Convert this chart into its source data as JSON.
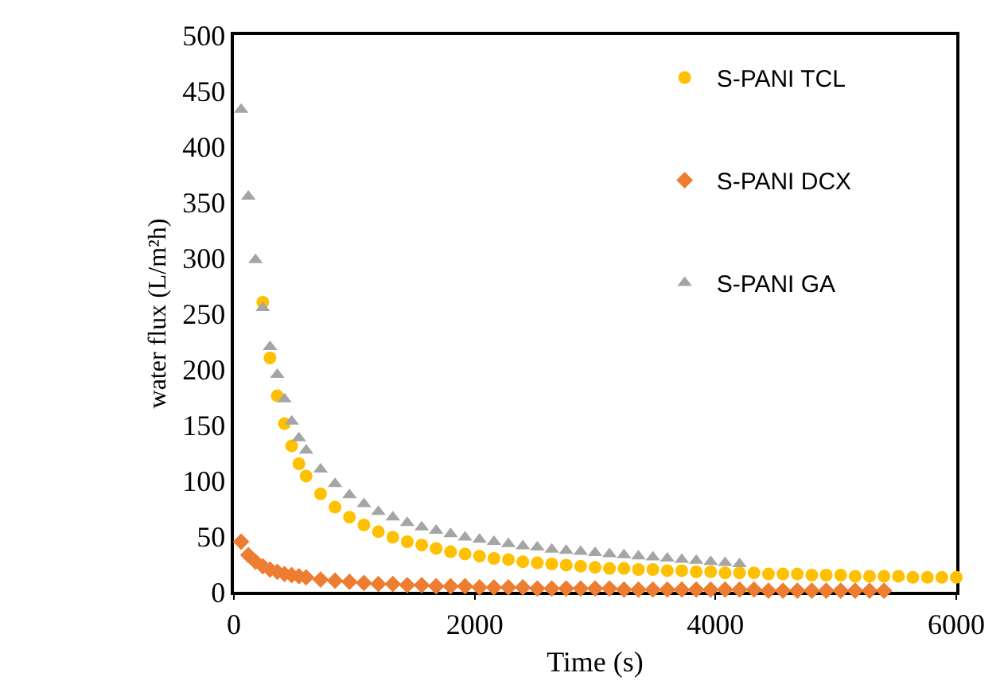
{
  "chart_data": {
    "type": "scatter",
    "xlabel": "Time (s)",
    "ylabel": "water flux (L/m²h)",
    "xlim": [
      0,
      6000
    ],
    "xticks": [
      0,
      2000,
      4000,
      6000
    ],
    "ylim": [
      0,
      500
    ],
    "yticks": [
      0,
      50,
      100,
      150,
      200,
      250,
      300,
      350,
      400,
      450,
      500
    ],
    "legend": "top right",
    "series": [
      {
        "name": "S-PANI TCL",
        "color": "#ffc000",
        "marker": "circle",
        "x": [
          240,
          300,
          360,
          420,
          480,
          540,
          600,
          720,
          840,
          960,
          1080,
          1200,
          1320,
          1440,
          1560,
          1680,
          1800,
          1920,
          2040,
          2160,
          2280,
          2400,
          2520,
          2640,
          2760,
          2880,
          3000,
          3120,
          3240,
          3360,
          3480,
          3600,
          3720,
          3840,
          3960,
          4080,
          4200,
          4320,
          4440,
          4560,
          4680,
          4800,
          4920,
          5040,
          5160,
          5280,
          5400,
          5520,
          5640,
          5760,
          5880,
          6000
        ],
        "values": [
          260,
          210,
          176,
          151,
          131,
          115,
          104,
          88,
          76,
          67,
          60,
          54,
          49,
          45,
          42,
          39,
          36,
          34,
          32,
          30,
          29,
          27,
          26,
          25,
          24,
          23,
          22,
          21,
          21,
          20,
          20,
          19,
          19,
          18,
          18,
          17,
          17,
          17,
          16,
          16,
          16,
          15,
          15,
          15,
          14,
          14,
          14,
          14,
          13,
          13,
          13,
          13
        ]
      },
      {
        "name": "S-PANI DCX",
        "color": "#ed7d31",
        "marker": "diamond",
        "x": [
          60,
          120,
          180,
          240,
          300,
          360,
          420,
          480,
          540,
          600,
          720,
          840,
          960,
          1080,
          1200,
          1320,
          1440,
          1560,
          1680,
          1800,
          1920,
          2040,
          2160,
          2280,
          2400,
          2520,
          2640,
          2760,
          2880,
          3000,
          3120,
          3240,
          3360,
          3480,
          3600,
          3720,
          3840,
          3960,
          4080,
          4200,
          4320,
          4440,
          4560,
          4680,
          4800,
          4920,
          5040,
          5160,
          5280,
          5400
        ],
        "values": [
          45,
          33,
          27,
          23,
          20,
          18,
          16,
          15,
          14,
          13,
          11,
          10,
          9,
          8,
          7,
          7,
          6,
          6,
          5,
          5,
          5,
          4,
          4,
          4,
          4,
          3,
          3,
          3,
          3,
          3,
          3,
          2,
          2,
          2,
          2,
          2,
          2,
          2,
          2,
          2,
          2,
          1,
          1,
          1,
          1,
          1,
          1,
          1,
          1,
          1
        ]
      },
      {
        "name": "S-PANI GA",
        "color": "#a5a5a5",
        "marker": "triangle",
        "x": [
          60,
          120,
          180,
          240,
          300,
          360,
          420,
          480,
          540,
          600,
          720,
          840,
          960,
          1080,
          1200,
          1320,
          1440,
          1560,
          1680,
          1800,
          1920,
          2040,
          2160,
          2280,
          2400,
          2520,
          2640,
          2760,
          2880,
          3000,
          3120,
          3240,
          3360,
          3480,
          3600,
          3720,
          3840,
          3960,
          4080,
          4200
        ],
        "values": [
          433,
          355,
          298,
          255,
          220,
          195,
          173,
          153,
          138,
          127,
          110,
          97,
          87,
          79,
          72,
          67,
          62,
          58,
          55,
          52,
          49,
          47,
          45,
          43,
          41,
          40,
          38,
          37,
          36,
          35,
          34,
          33,
          32,
          31,
          30,
          29,
          28,
          27,
          26,
          25
        ]
      }
    ]
  }
}
